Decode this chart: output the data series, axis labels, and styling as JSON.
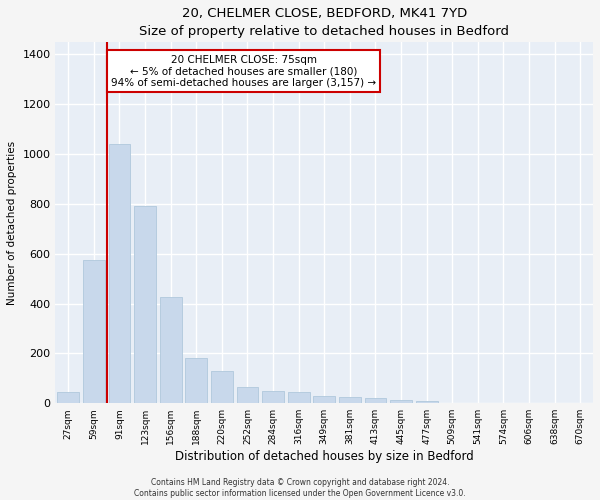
{
  "title1": "20, CHELMER CLOSE, BEDFORD, MK41 7YD",
  "title2": "Size of property relative to detached houses in Bedford",
  "xlabel": "Distribution of detached houses by size in Bedford",
  "ylabel": "Number of detached properties",
  "bar_color": "#c8d8eb",
  "bar_edge_color": "#b0c8dc",
  "background_color": "#e8eef6",
  "grid_color": "#ffffff",
  "fig_color": "#f5f5f5",
  "categories": [
    "27sqm",
    "59sqm",
    "91sqm",
    "123sqm",
    "156sqm",
    "188sqm",
    "220sqm",
    "252sqm",
    "284sqm",
    "316sqm",
    "349sqm",
    "381sqm",
    "413sqm",
    "445sqm",
    "477sqm",
    "509sqm",
    "541sqm",
    "574sqm",
    "606sqm",
    "638sqm",
    "670sqm"
  ],
  "values": [
    45,
    575,
    1040,
    790,
    425,
    180,
    130,
    65,
    50,
    45,
    28,
    25,
    20,
    15,
    8,
    3,
    2,
    1,
    0,
    0,
    0
  ],
  "ylim": [
    0,
    1450
  ],
  "yticks": [
    0,
    200,
    400,
    600,
    800,
    1000,
    1200,
    1400
  ],
  "vline_x": 1.5,
  "vline_color": "#cc0000",
  "annotation_text": "20 CHELMER CLOSE: 75sqm\n← 5% of detached houses are smaller (180)\n94% of semi-detached houses are larger (3,157) →",
  "annotation_box_color": "#ffffff",
  "annotation_box_edge": "#cc0000",
  "footer1": "Contains HM Land Registry data © Crown copyright and database right 2024.",
  "footer2": "Contains public sector information licensed under the Open Government Licence v3.0."
}
